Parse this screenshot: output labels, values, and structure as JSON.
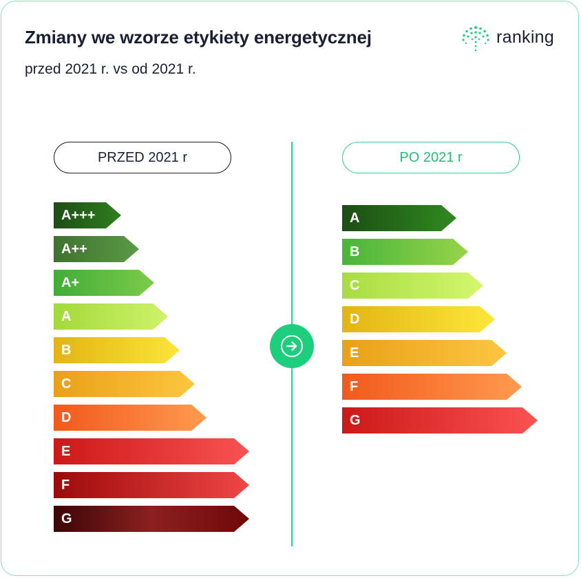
{
  "header": {
    "title": "Zmiany we wzorze etykiety energetycznej",
    "subtitle": "przed 2021 r. vs od 2021 r."
  },
  "logo": {
    "text": "ranking",
    "icon": "ranking-logo-icon",
    "color": "#1ccf7c"
  },
  "left": {
    "label": "PRZED 2021 r",
    "classes": [
      {
        "label": "A+++",
        "from": "#1d4d14",
        "to": "#2f7f1f"
      },
      {
        "label": "A++",
        "from": "#3f7230",
        "to": "#5b9a45"
      },
      {
        "label": "A+",
        "from": "#41ad38",
        "to": "#7ccb4a"
      },
      {
        "label": "A",
        "from": "#a3d93a",
        "to": "#cff36a"
      },
      {
        "label": "B",
        "from": "#e3b414",
        "to": "#fbe539"
      },
      {
        "label": "C",
        "from": "#e9a018",
        "to": "#fdc640"
      },
      {
        "label": "D",
        "from": "#f2591b",
        "to": "#ff9a4f"
      },
      {
        "label": "E",
        "from": "#cc1818",
        "to": "#f95252"
      },
      {
        "label": "F",
        "from": "#9c0a0a",
        "to": "#f04646"
      },
      {
        "label": "G",
        "from": "#3d0505",
        "mid": "#8c2020",
        "to": "#700808"
      }
    ]
  },
  "right": {
    "label": "PO 2021 r",
    "classes": [
      {
        "label": "A",
        "from": "#1d4d14",
        "to": "#2f8a1f"
      },
      {
        "label": "B",
        "from": "#48b53a",
        "to": "#98d34a"
      },
      {
        "label": "C",
        "from": "#a8dc42",
        "to": "#d4f76e"
      },
      {
        "label": "D",
        "from": "#e3b414",
        "to": "#fde739"
      },
      {
        "label": "E",
        "from": "#e9a018",
        "to": "#fdc640"
      },
      {
        "label": "F",
        "from": "#f2591b",
        "to": "#ff9a4f"
      },
      {
        "label": "G",
        "from": "#cc1818",
        "to": "#fb5252"
      }
    ]
  },
  "center": {
    "icon": "arrow-right-icon"
  }
}
